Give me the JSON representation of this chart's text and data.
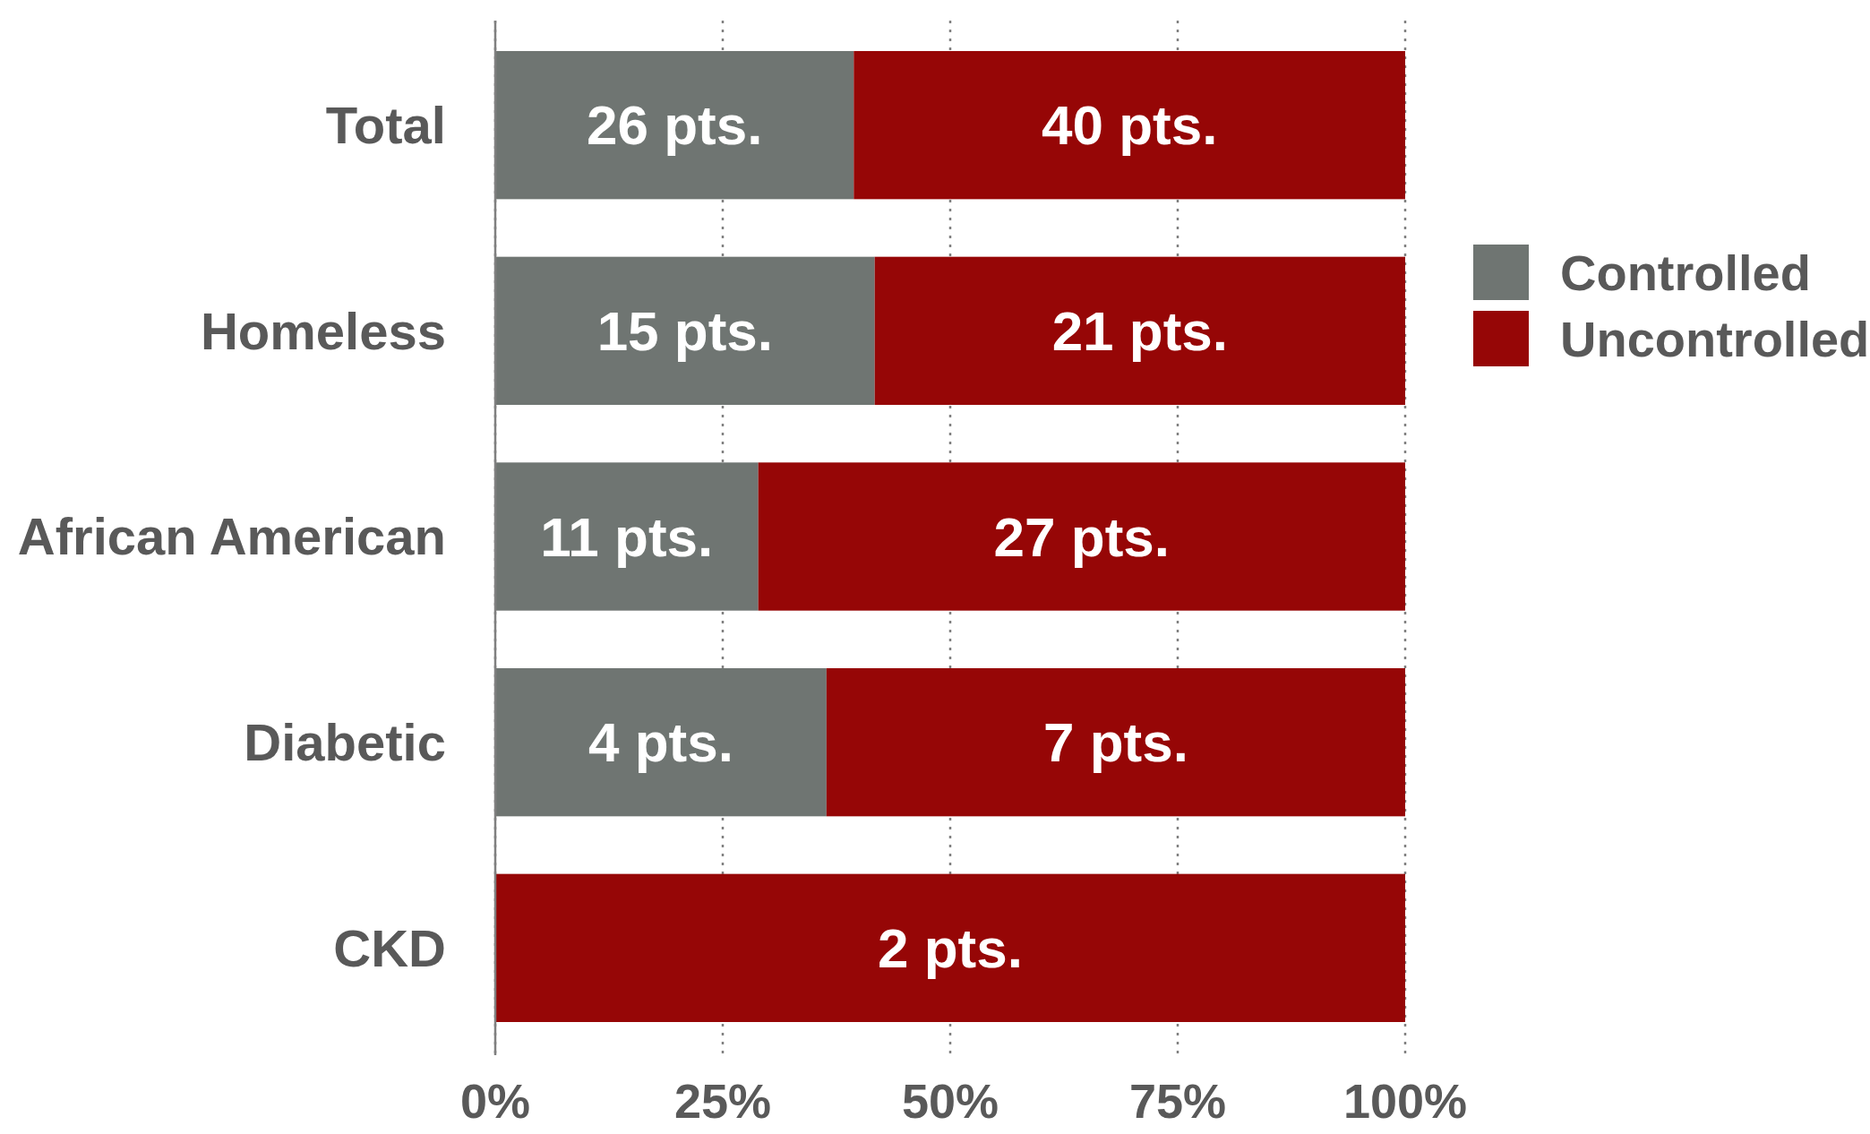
{
  "chart_data": {
    "type": "bar",
    "orientation": "horizontal",
    "stacked": true,
    "categories": [
      "Total",
      "Homeless",
      "African American",
      "Diabetic",
      "CKD"
    ],
    "series": [
      {
        "name": "Controlled",
        "color": "#6f7572",
        "values": [
          39.4,
          41.7,
          28.9,
          36.4,
          0
        ]
      },
      {
        "name": "Uncontrolled",
        "color": "#960606",
        "values": [
          60.6,
          58.3,
          71.1,
          63.6,
          100
        ]
      }
    ],
    "annotations": [
      "26 pts.",
      "40 pts.",
      "15 pts.",
      "21 pts.",
      "11 pts.",
      "27 pts.",
      "4 pts.",
      "7 pts.",
      "2 pts."
    ],
    "xlim": [
      0,
      100
    ],
    "xticks": [
      {
        "value": 0,
        "label": "0%"
      },
      {
        "value": 25,
        "label": "25%"
      },
      {
        "value": 50,
        "label": "50%"
      },
      {
        "value": 75,
        "label": "75%"
      },
      {
        "value": 100,
        "label": "100%"
      }
    ],
    "grid": "x",
    "legend": "right"
  }
}
